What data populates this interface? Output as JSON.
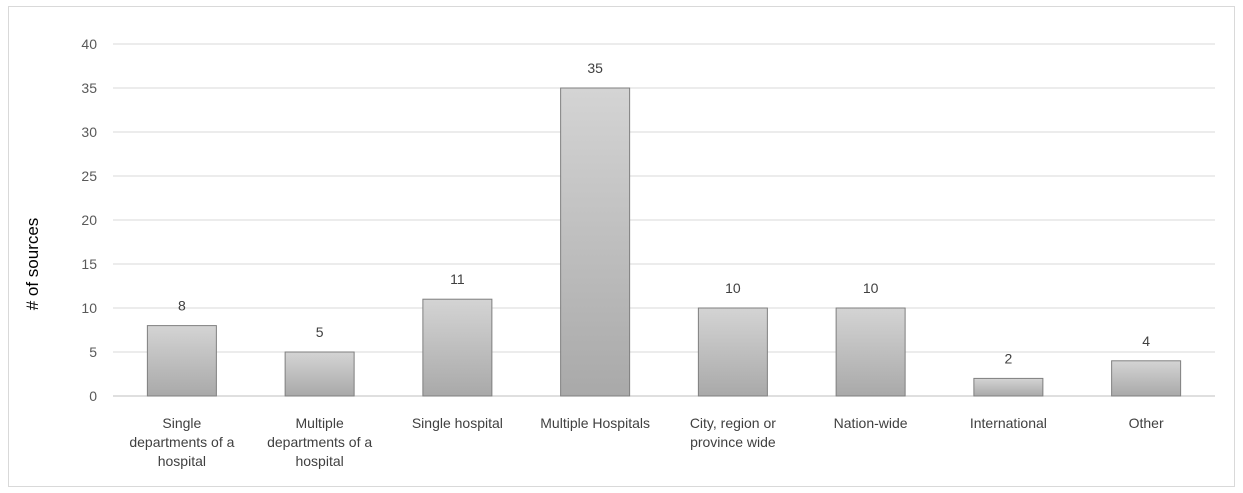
{
  "chart_data": {
    "type": "bar",
    "title": "",
    "xlabel": "",
    "ylabel": "# of sources",
    "ylim": [
      0,
      40
    ],
    "yticks": [
      0,
      5,
      10,
      15,
      20,
      25,
      30,
      35,
      40
    ],
    "grid": true,
    "legend": "none",
    "categories": [
      [
        "Single",
        "departments of a",
        "hospital"
      ],
      [
        "Multiple",
        "departments of a",
        "hospital"
      ],
      [
        "Single hospital"
      ],
      [
        "Multiple Hospitals"
      ],
      [
        "City, region or",
        "province wide"
      ],
      [
        "Nation-wide"
      ],
      [
        "International"
      ],
      [
        "Other"
      ]
    ],
    "values": [
      8,
      5,
      11,
      35,
      10,
      10,
      2,
      4
    ],
    "data_labels": [
      "8",
      "5",
      "11",
      "35",
      "10",
      "10",
      "2",
      "4"
    ],
    "colors": {
      "bar_top": "#d4d4d4",
      "bar_bottom": "#a9a9a9",
      "bar_stroke": "#7f7f7f",
      "grid": "#d9d9d9"
    }
  }
}
